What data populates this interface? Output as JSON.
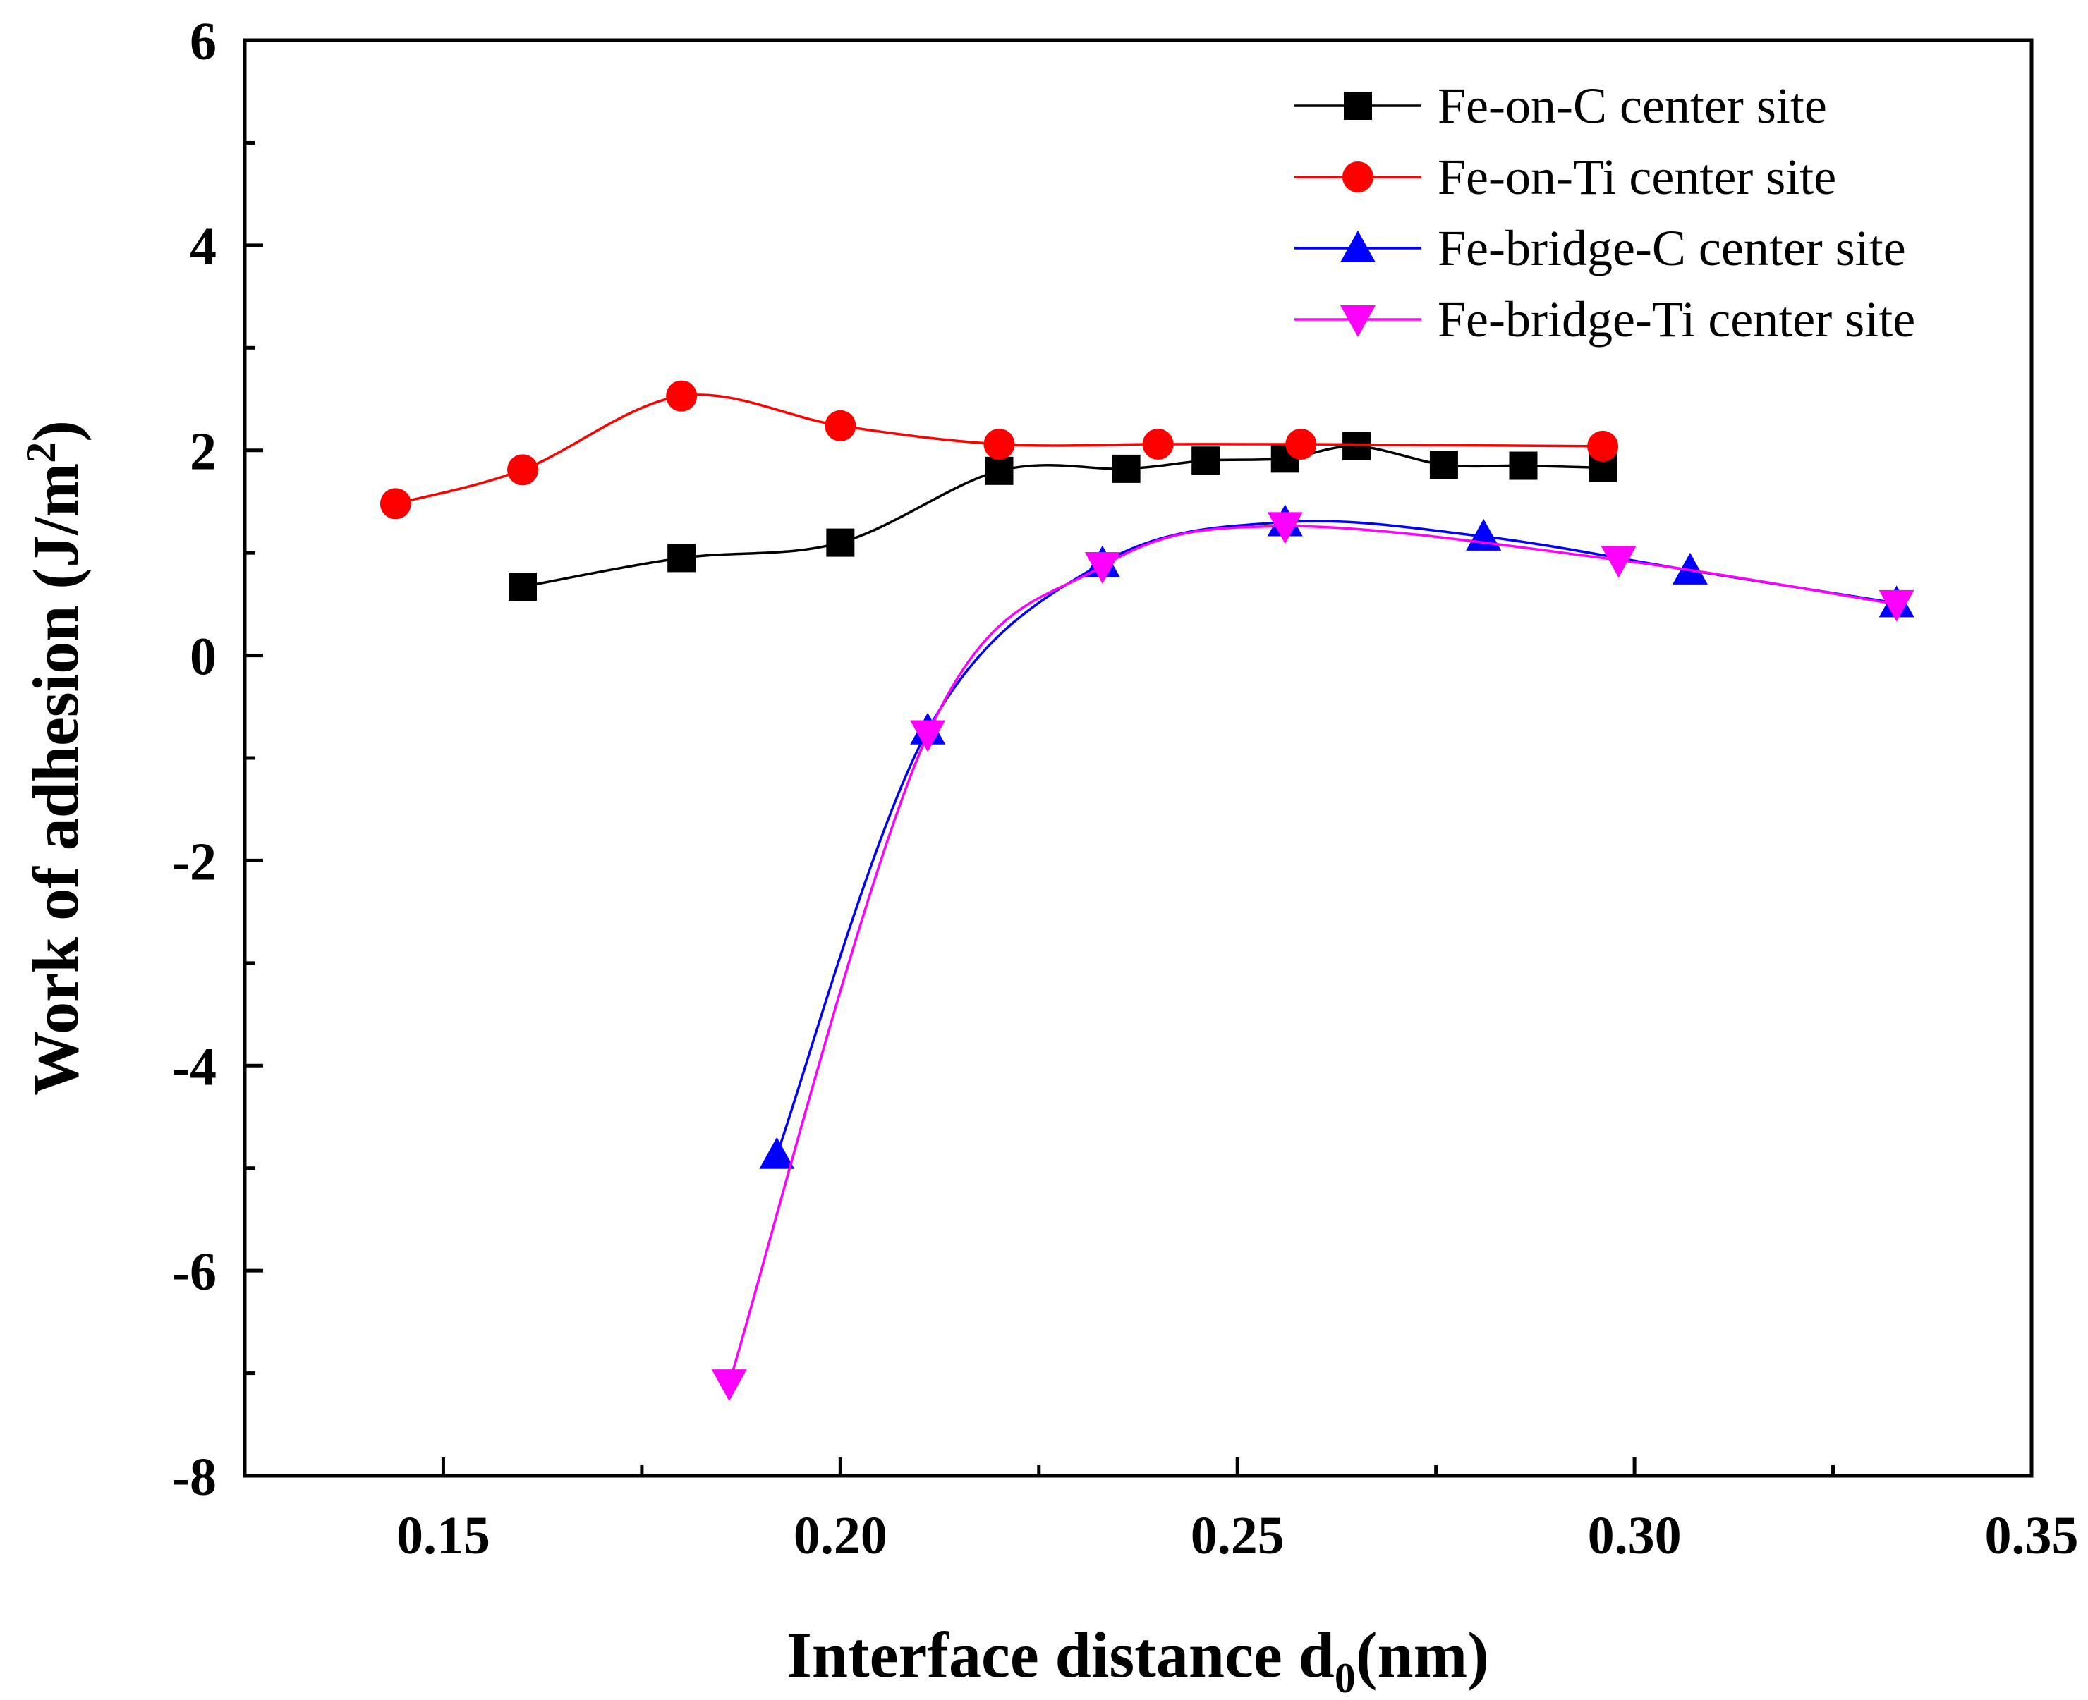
{
  "chart_data": {
    "type": "line",
    "title": "",
    "xlabel": "Interface distance d",
    "xlabel_sub": "0",
    "xlabel_suffix": "(nm)",
    "ylabel": "Work of adhesion (J/m",
    "ylabel_sup": "2",
    "ylabel_suffix": ")",
    "xlim": [
      0.125,
      0.35
    ],
    "ylim": [
      -8,
      6
    ],
    "xticks": [
      0.15,
      0.2,
      0.25,
      0.3,
      0.35
    ],
    "xtick_labels": [
      "0.15",
      "0.20",
      "0.25",
      "0.30",
      "0.35"
    ],
    "yticks": [
      -8,
      -6,
      -4,
      -2,
      0,
      2,
      4,
      6
    ],
    "ytick_labels": [
      "-8",
      "-6",
      "-4",
      "-2",
      "0",
      "2",
      "4",
      "6"
    ],
    "grid": false,
    "legend_position": "top-right",
    "series": [
      {
        "name": "Fe-on-C center site",
        "color": "#000000",
        "marker": "square",
        "x": [
          0.16,
          0.18,
          0.2,
          0.22,
          0.236,
          0.246,
          0.256,
          0.265,
          0.276,
          0.286,
          0.296
        ],
        "y": [
          0.67,
          0.95,
          1.1,
          1.8,
          1.82,
          1.9,
          1.92,
          2.04,
          1.86,
          1.85,
          1.83
        ]
      },
      {
        "name": "Fe-on-Ti center site",
        "color": "#ff0000",
        "marker": "circle",
        "x": [
          0.144,
          0.16,
          0.18,
          0.2,
          0.22,
          0.24,
          0.258,
          0.296
        ],
        "y": [
          1.48,
          1.81,
          2.53,
          2.24,
          2.06,
          2.06,
          2.06,
          2.04
        ]
      },
      {
        "name": "Fe-bridge-C center site",
        "color": "#0000ff",
        "marker": "triangle-up",
        "x": [
          0.192,
          0.211,
          0.233,
          0.256,
          0.281,
          0.307,
          0.333
        ],
        "y": [
          -4.87,
          -0.73,
          0.9,
          1.3,
          1.16,
          0.83,
          0.51
        ]
      },
      {
        "name": "Fe-bridge-Ti center site",
        "color": "#ff00ff",
        "marker": "triangle-down",
        "x": [
          0.186,
          0.211,
          0.233,
          0.256,
          0.298,
          0.333
        ],
        "y": [
          -7.1,
          -0.77,
          0.87,
          1.26,
          0.93,
          0.5
        ]
      }
    ]
  }
}
